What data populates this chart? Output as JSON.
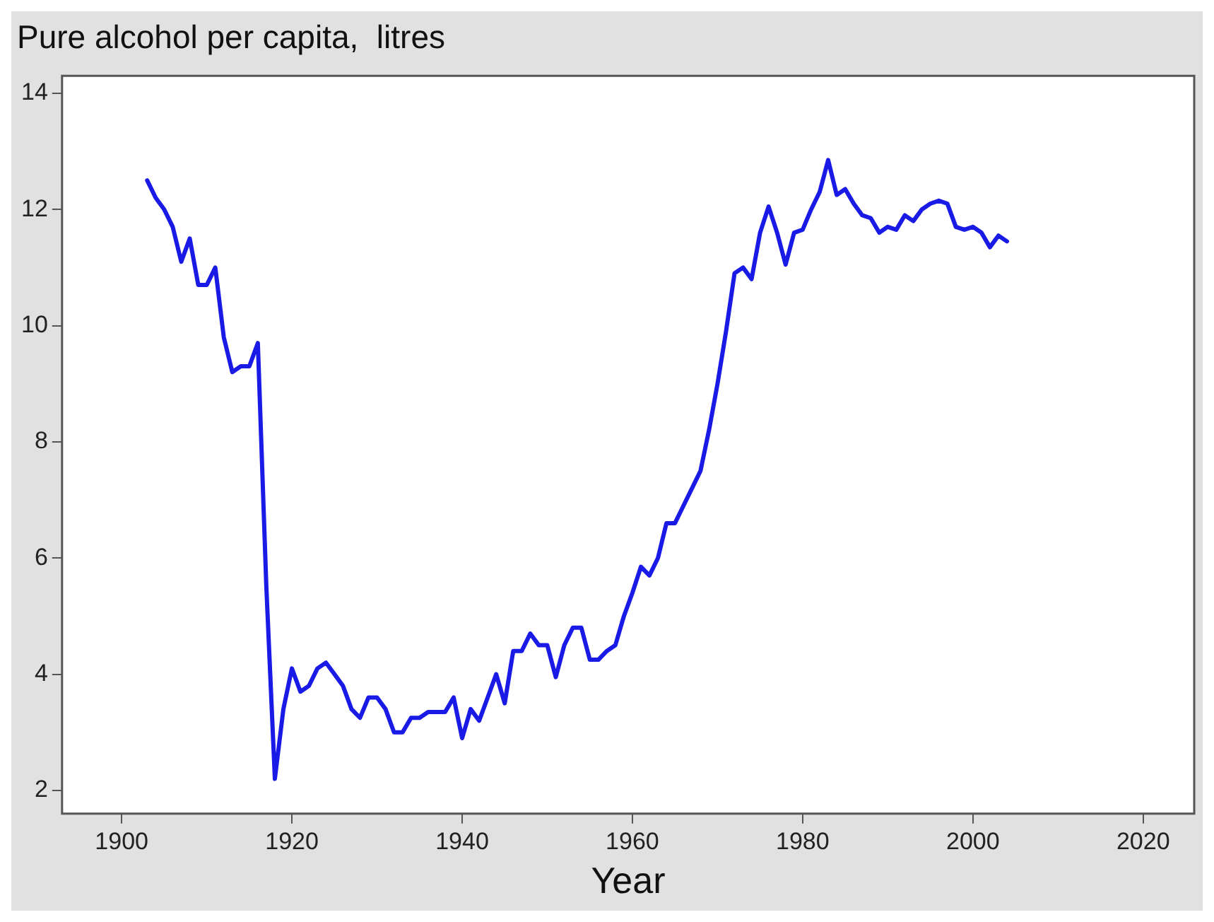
{
  "chart_data": {
    "type": "line",
    "title": "Pure alcohol per capita,  litres",
    "xlabel": "Year",
    "x": [
      1903,
      1904,
      1905,
      1906,
      1907,
      1908,
      1909,
      1910,
      1911,
      1912,
      1913,
      1914,
      1915,
      1916,
      1917,
      1918,
      1919,
      1920,
      1921,
      1922,
      1923,
      1924,
      1925,
      1926,
      1927,
      1928,
      1929,
      1930,
      1931,
      1932,
      1933,
      1934,
      1935,
      1936,
      1937,
      1938,
      1939,
      1940,
      1941,
      1942,
      1943,
      1944,
      1945,
      1946,
      1947,
      1948,
      1949,
      1950,
      1951,
      1952,
      1953,
      1954,
      1955,
      1956,
      1957,
      1958,
      1959,
      1960,
      1961,
      1962,
      1963,
      1964,
      1965,
      1966,
      1967,
      1968,
      1969,
      1970,
      1971,
      1972,
      1973,
      1974,
      1975,
      1976,
      1977,
      1978,
      1979,
      1980,
      1981,
      1982,
      1983,
      1984,
      1985,
      1986,
      1987,
      1988,
      1989,
      1990,
      1991,
      1992,
      1993,
      1994,
      1995,
      1996,
      1997,
      1998,
      1999,
      2000,
      2001,
      2002,
      2003,
      2004
    ],
    "series": [
      {
        "color": "#1a1ae6",
        "values": [
          12.5,
          12.2,
          12.0,
          11.7,
          11.1,
          11.5,
          10.7,
          10.7,
          11.0,
          9.8,
          9.2,
          9.3,
          9.3,
          9.7,
          5.5,
          2.2,
          3.4,
          4.1,
          3.7,
          3.8,
          4.1,
          4.2,
          4.0,
          3.8,
          3.4,
          3.25,
          3.6,
          3.6,
          3.4,
          3.0,
          3.0,
          3.25,
          3.25,
          3.35,
          3.35,
          3.35,
          3.6,
          2.9,
          3.4,
          3.2,
          3.6,
          4.0,
          3.5,
          4.4,
          4.4,
          4.7,
          4.5,
          4.5,
          3.95,
          4.5,
          4.8,
          4.8,
          4.25,
          4.25,
          4.4,
          4.5,
          5.0,
          5.4,
          5.85,
          5.7,
          6.0,
          6.6,
          6.6,
          6.9,
          7.2,
          7.5,
          8.2,
          9.0,
          9.9,
          10.9,
          11.0,
          10.8,
          11.6,
          12.05,
          11.6,
          11.05,
          11.6,
          11.65,
          12.0,
          12.3,
          12.85,
          12.25,
          12.35,
          12.1,
          11.9,
          11.85,
          11.6,
          11.7,
          11.65,
          11.9,
          11.8,
          12.0,
          12.1,
          12.15,
          12.1,
          11.7,
          11.65,
          11.7,
          11.6,
          11.35,
          11.55,
          11.45
        ]
      }
    ],
    "xlim": [
      1893,
      2026
    ],
    "ylim": [
      1.6,
      14.3
    ],
    "xticks": [
      1900,
      1920,
      1940,
      1960,
      1980,
      2000,
      2020
    ],
    "yticks": [
      2,
      4,
      6,
      8,
      10,
      12,
      14
    ],
    "grid": false,
    "legend": false,
    "marker": "none",
    "line_style": "solid"
  }
}
